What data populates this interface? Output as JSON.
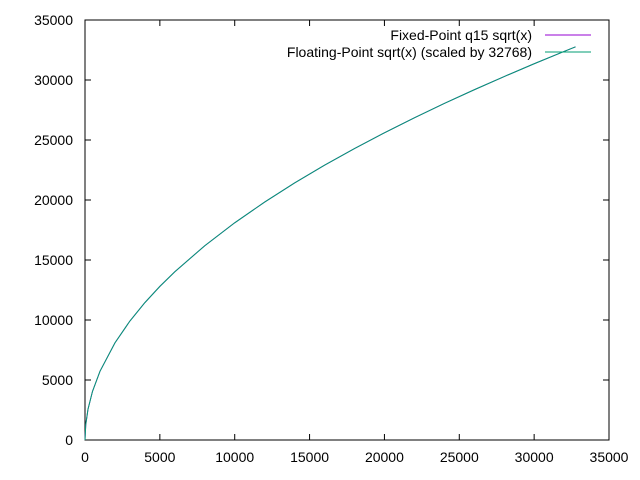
{
  "chart_data": {
    "type": "line",
    "title": "",
    "xlabel": "",
    "ylabel": "",
    "xlim": [
      0,
      35000
    ],
    "ylim": [
      0,
      35000
    ],
    "xticks": [
      0,
      5000,
      10000,
      15000,
      20000,
      25000,
      30000,
      35000
    ],
    "yticks": [
      0,
      5000,
      10000,
      15000,
      20000,
      25000,
      30000,
      35000
    ],
    "grid": false,
    "legend_position": "top-right",
    "series": [
      {
        "name": "Fixed-Point q15 sqrt(x)",
        "color": "#9400d3",
        "x": [
          0,
          50,
          200,
          500,
          1000,
          2000,
          3000,
          4000,
          5000,
          6000,
          8000,
          10000,
          12000,
          14000,
          16000,
          18000,
          20000,
          22000,
          24000,
          26000,
          28000,
          30000,
          32000,
          32767
        ],
        "y": [
          0,
          1280,
          2560,
          4048,
          5724,
          8096,
          9915,
          11449,
          12800,
          14022,
          16191,
          18102,
          19830,
          21418,
          22897,
          24286,
          25600,
          26849,
          28043,
          29188,
          30290,
          31353,
          32382,
          32767
        ]
      },
      {
        "name": "Floating-Point sqrt(x) (scaled by 32768)",
        "color": "#009e73",
        "x": [
          0,
          50,
          200,
          500,
          1000,
          2000,
          3000,
          4000,
          5000,
          6000,
          8000,
          10000,
          12000,
          14000,
          16000,
          18000,
          20000,
          22000,
          24000,
          26000,
          28000,
          30000,
          32000,
          32767
        ],
        "y": [
          0,
          1280,
          2560,
          4048,
          5724,
          8096,
          9915,
          11449,
          12800,
          14022,
          16191,
          18102,
          19830,
          21418,
          22897,
          24286,
          25600,
          26849,
          28043,
          29188,
          30290,
          31353,
          32382,
          32767
        ]
      }
    ]
  }
}
